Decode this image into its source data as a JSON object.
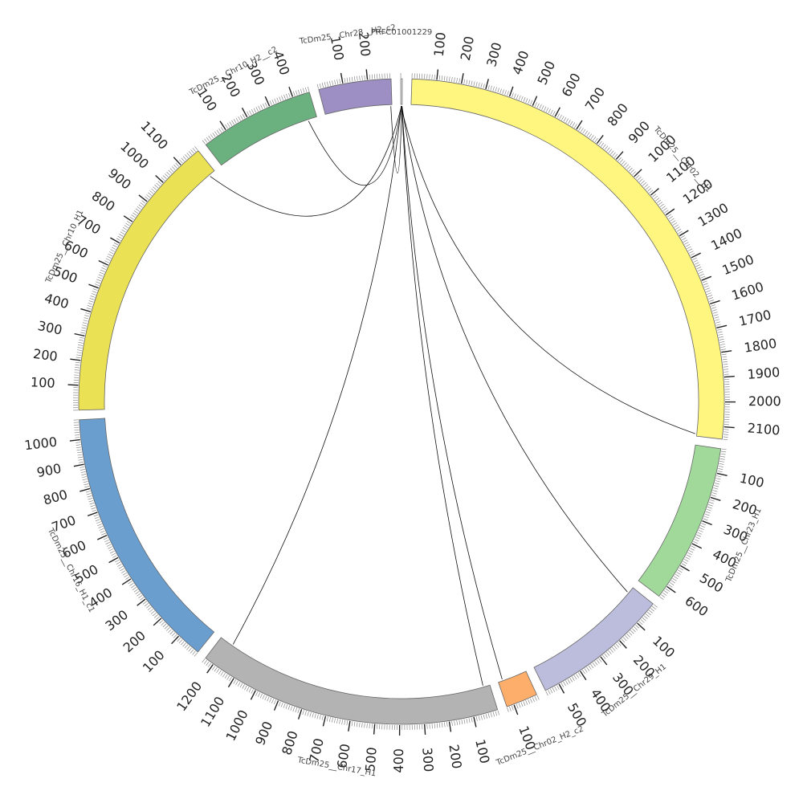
{
  "diagram": {
    "type": "circos",
    "segments": [
      {
        "id": "ctg",
        "label": "PRFC01001229",
        "length": 6,
        "color": "#ffffff",
        "major_tick": 100,
        "show_labels": false
      },
      {
        "id": "chr02h1",
        "label": "TcDm25__Chr02__H1",
        "length": 2150,
        "color": "#fff680",
        "major_tick": 100,
        "show_labels": true
      },
      {
        "id": "chr23h1",
        "label": "TcDm25__Chr23_H1",
        "length": 650,
        "color": "#a1d99b",
        "major_tick": 100,
        "show_labels": true
      },
      {
        "id": "chr29h1",
        "label": "TcDm25__Chr29_H1",
        "length": 560,
        "color": "#bcbddc",
        "major_tick": 100,
        "show_labels": true
      },
      {
        "id": "chr02h2c2",
        "label": "TcDm25__Chr02_H2_c2",
        "length": 130,
        "color": "#fdae6b",
        "major_tick": 100,
        "show_labels": true
      },
      {
        "id": "chr17h1",
        "label": "TcDm25__Chr17_H1",
        "length": 1240,
        "color": "#b3b3b3",
        "major_tick": 100,
        "show_labels": true
      },
      {
        "id": "chr16h1c1",
        "label": "TcDm25__Chr16_H1_c1",
        "length": 1080,
        "color": "#6a9ecf",
        "major_tick": 100,
        "show_labels": true
      },
      {
        "id": "chr10h1",
        "label": "TcDm25__Chr10_H1",
        "length": 1190,
        "color": "#ebe155",
        "major_tick": 100,
        "show_labels": true
      },
      {
        "id": "chr10h2c2",
        "label": "TcDm25__Chr10_H2__c2",
        "length": 470,
        "color": "#6ab17f",
        "major_tick": 100,
        "show_labels": true
      },
      {
        "id": "chr28h2c2",
        "label": "TcDm25__Chr28__H2_c2",
        "length": 295,
        "color": "#9d8ec4",
        "major_tick": 100,
        "show_labels": true
      }
    ],
    "links": [
      {
        "from": [
          "ctg",
          1
        ],
        "to": [
          "chr02h1",
          2140
        ]
      },
      {
        "from": [
          "ctg",
          2
        ],
        "to": [
          "chr17h1",
          1180
        ]
      },
      {
        "from": [
          "ctg",
          3
        ],
        "to": [
          "chr10h1",
          1160
        ]
      },
      {
        "from": [
          "ctg",
          3
        ],
        "to": [
          "chr10h2c2",
          430
        ]
      },
      {
        "from": [
          "ctg",
          4
        ],
        "to": [
          "chr28h2c2",
          290
        ]
      },
      {
        "from": [
          "ctg",
          4
        ],
        "to": [
          "chr17h1",
          30
        ]
      },
      {
        "from": [
          "ctg",
          5
        ],
        "to": [
          "chr02h2c2",
          110
        ]
      },
      {
        "from": [
          "ctg",
          5
        ],
        "to": [
          "chr29h1",
          30
        ]
      }
    ]
  }
}
